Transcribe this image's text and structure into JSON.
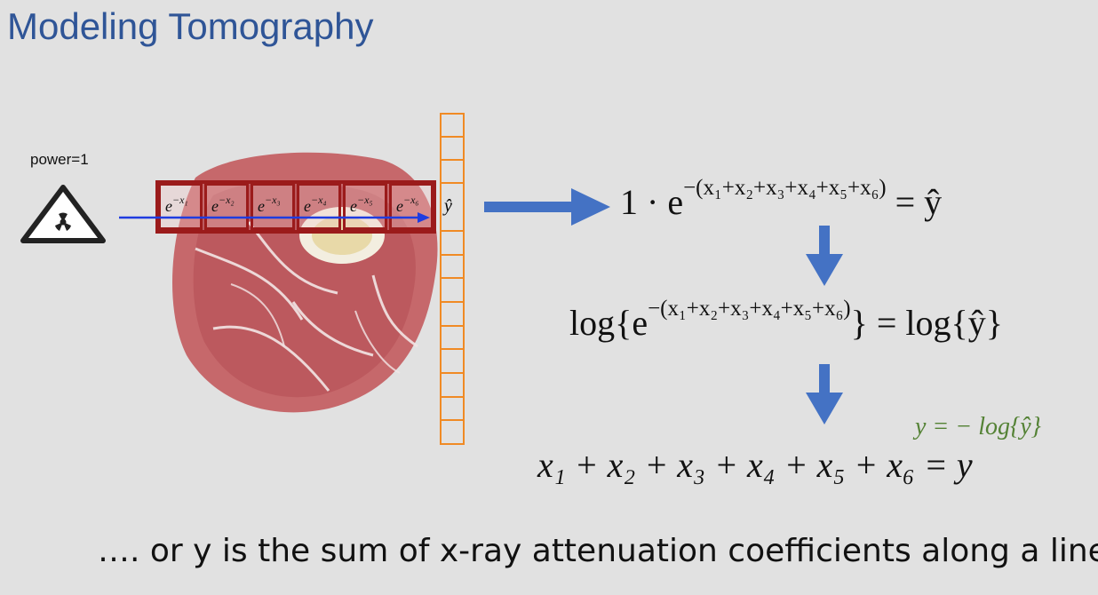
{
  "title": "Modeling Tomography",
  "source": {
    "power_label": "power=1",
    "icon": "radiation-icon"
  },
  "cells": [
    {
      "base": "e",
      "exponent": "−x₁"
    },
    {
      "base": "e",
      "exponent": "−x₂"
    },
    {
      "base": "e",
      "exponent": "−x₃"
    },
    {
      "base": "e",
      "exponent": "−x₄"
    },
    {
      "base": "e",
      "exponent": "−x₅"
    },
    {
      "base": "e",
      "exponent": "−x₆"
    }
  ],
  "detector": {
    "label": "ŷ",
    "cell_count": 14
  },
  "equations": {
    "eq1_lhs": "1 · e",
    "eq1_exp": "−(x₁+x₂+x₃+x₄+x₅+x₆)",
    "eq1_rhs": " = ŷ",
    "eq2_lhs": "log{e",
    "eq2_exp": "−(x₁+x₂+x₃+x₄+x₅+x₆)",
    "eq2_rhs": "} = log{ŷ}",
    "eq_green": "y = − log{ŷ}",
    "eq3": "x₁ + x₂ + x₃ + x₄ + x₅ + x₆ = y"
  },
  "caption": "…. or y is the sum of x-ray attenuation coefficients along a line",
  "colors": {
    "title": "#2f5597",
    "arrow": "#4472c4",
    "ray": "#1f3ce0",
    "cell_border": "#9b1b1b",
    "detector": "#f08a24",
    "green": "#548235"
  }
}
